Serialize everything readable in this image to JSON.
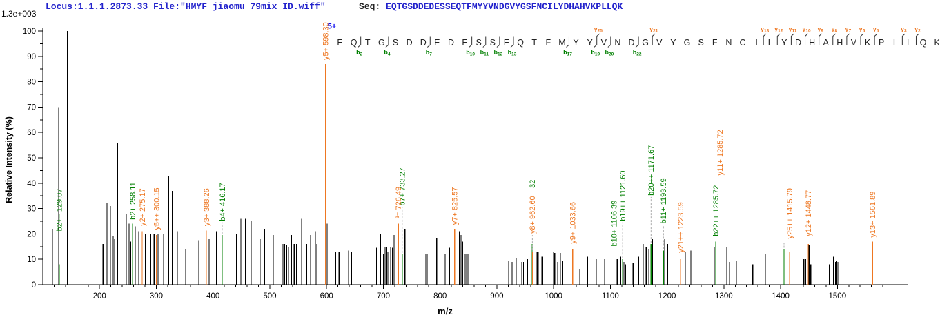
{
  "header": {
    "locus_file": "Locus:1.1.1.2873.33 File:\"HMYF_jiaomu_79mix_ID.wiff\"",
    "seq_prefix": "Seq: ",
    "sequence": "EQTGSDDEDESSEQTFMYYVNDGVYGSFNCILYDHAHVKPLLQK",
    "base_peak_intensity": "1.3e+003",
    "precursor_charge": "5+"
  },
  "colors": {
    "black_peak": "#000000",
    "b_ion_green": "#007f00",
    "y_ion_orange": "#ee7722",
    "header_blue": "#2222cc",
    "precursor_blue": "#0000ee",
    "leader_gray": "#aaaaaa",
    "axis": "#000000"
  },
  "chart_data": {
    "type": "line",
    "subtype": "centroid-ms2-spectrum",
    "title": "",
    "xlabel": "m/z",
    "ylabel": "Relative  Intensity  (%)",
    "xlim": [
      100,
      1620
    ],
    "ylim": [
      0,
      100
    ],
    "x_major_ticks": [
      200,
      300,
      400,
      500,
      600,
      700,
      800,
      900,
      1000,
      1100,
      1200,
      1300,
      1400,
      1500
    ],
    "x_minor_step": 20,
    "y_major_step": 10,
    "y_minor_step": 5,
    "grid": false,
    "legend_position": "none",
    "peaks": [
      [
        117,
        22,
        "k"
      ],
      [
        128,
        70,
        "k"
      ],
      [
        129.07,
        8,
        "g"
      ],
      [
        143,
        100,
        "k"
      ],
      [
        206,
        16,
        "k"
      ],
      [
        213,
        32,
        "k"
      ],
      [
        219,
        31,
        "k"
      ],
      [
        224,
        19,
        "k"
      ],
      [
        226.5,
        18,
        "k"
      ],
      [
        232,
        56,
        "k"
      ],
      [
        238,
        48,
        "k"
      ],
      [
        243,
        29,
        "k"
      ],
      [
        247,
        28,
        "k"
      ],
      [
        252,
        24,
        "k"
      ],
      [
        255,
        17,
        "k"
      ],
      [
        258.11,
        24,
        "g"
      ],
      [
        263,
        23,
        "k"
      ],
      [
        269,
        21,
        "k"
      ],
      [
        275.17,
        21,
        "o"
      ],
      [
        281,
        20,
        "k"
      ],
      [
        290,
        20,
        "k"
      ],
      [
        296,
        20,
        "k"
      ],
      [
        300.15,
        19.5,
        "o"
      ],
      [
        303,
        20,
        "k"
      ],
      [
        313,
        20,
        "k"
      ],
      [
        322,
        43,
        "k"
      ],
      [
        328,
        37,
        "k"
      ],
      [
        337,
        21,
        "k"
      ],
      [
        345,
        21.5,
        "k"
      ],
      [
        352,
        14,
        "k"
      ],
      [
        368,
        42,
        "k"
      ],
      [
        375,
        17.5,
        "k"
      ],
      [
        388.26,
        21.3,
        "o"
      ],
      [
        393,
        18,
        "k"
      ],
      [
        406,
        21,
        "k"
      ],
      [
        416.17,
        19.5,
        "g"
      ],
      [
        423,
        24,
        "k"
      ],
      [
        441,
        20,
        "k"
      ],
      [
        449,
        26,
        "k"
      ],
      [
        457,
        26,
        "k"
      ],
      [
        467,
        25,
        "k"
      ],
      [
        483,
        18,
        "k"
      ],
      [
        486,
        18,
        "k"
      ],
      [
        491,
        22,
        "k"
      ],
      [
        506,
        19.5,
        "k"
      ],
      [
        513,
        22.5,
        "k"
      ],
      [
        523,
        16,
        "k"
      ],
      [
        526,
        16,
        "k"
      ],
      [
        530,
        15.5,
        "k"
      ],
      [
        533,
        15,
        "k"
      ],
      [
        538,
        19.5,
        "k"
      ],
      [
        543,
        16,
        "k"
      ],
      [
        547,
        16,
        "k"
      ],
      [
        556,
        26,
        "k"
      ],
      [
        565,
        16,
        "k"
      ],
      [
        572,
        19.5,
        "k"
      ],
      [
        576,
        17,
        "k"
      ],
      [
        580,
        21,
        "k"
      ],
      [
        583,
        16,
        "k"
      ],
      [
        598.3,
        87,
        "o"
      ],
      [
        601,
        24,
        "k"
      ],
      [
        616,
        13,
        "k"
      ],
      [
        622,
        13,
        "k"
      ],
      [
        639,
        13.5,
        "k"
      ],
      [
        644,
        13,
        "k"
      ],
      [
        655,
        13,
        "k"
      ],
      [
        688,
        14.5,
        "k"
      ],
      [
        695,
        20,
        "k"
      ],
      [
        700,
        12,
        "k"
      ],
      [
        703,
        15,
        "k"
      ],
      [
        706,
        15,
        "k"
      ],
      [
        708,
        13,
        "k"
      ],
      [
        710,
        13,
        "k"
      ],
      [
        713,
        15,
        "k"
      ],
      [
        716,
        14.5,
        "k"
      ],
      [
        719,
        19.5,
        "k"
      ],
      [
        726.49,
        24,
        "o"
      ],
      [
        733.27,
        12,
        "g"
      ],
      [
        738,
        22,
        "k"
      ],
      [
        775,
        12,
        "k"
      ],
      [
        777,
        12,
        "k"
      ],
      [
        794,
        18.5,
        "k"
      ],
      [
        809,
        12,
        "k"
      ],
      [
        817,
        14.5,
        "k"
      ],
      [
        825.57,
        22,
        "o"
      ],
      [
        834,
        21,
        "k"
      ],
      [
        837,
        19.5,
        "k"
      ],
      [
        840,
        17,
        "k"
      ],
      [
        843,
        12,
        "k"
      ],
      [
        845.5,
        12,
        "k"
      ],
      [
        848,
        12,
        "k"
      ],
      [
        850.5,
        12,
        "k"
      ],
      [
        921,
        9.5,
        "k"
      ],
      [
        927,
        9,
        "k"
      ],
      [
        934,
        10.5,
        "k"
      ],
      [
        944,
        9,
        "k"
      ],
      [
        947,
        9,
        "k"
      ],
      [
        954,
        10,
        "k"
      ],
      [
        962.32,
        16,
        "g"
      ],
      [
        962.6,
        13,
        "o"
      ],
      [
        971,
        13,
        "k"
      ],
      [
        973,
        13,
        "k"
      ],
      [
        979,
        11,
        "k"
      ],
      [
        981,
        11,
        "k"
      ],
      [
        1000,
        13,
        "k"
      ],
      [
        1002,
        12.5,
        "k"
      ],
      [
        1007,
        9,
        "k"
      ],
      [
        1012,
        12.5,
        "k"
      ],
      [
        1016,
        9.5,
        "k"
      ],
      [
        1033.66,
        14,
        "o"
      ],
      [
        1046,
        6,
        "k"
      ],
      [
        1060,
        11,
        "k"
      ],
      [
        1075,
        10,
        "k"
      ],
      [
        1090,
        10,
        "k"
      ],
      [
        1106.39,
        13,
        "g"
      ],
      [
        1112,
        10,
        "k"
      ],
      [
        1118,
        11,
        "k"
      ],
      [
        1121.6,
        10,
        "g"
      ],
      [
        1124,
        9,
        "k"
      ],
      [
        1127,
        8,
        "k"
      ],
      [
        1133,
        9,
        "k"
      ],
      [
        1140,
        8.5,
        "k"
      ],
      [
        1150,
        11,
        "k"
      ],
      [
        1158,
        16,
        "k"
      ],
      [
        1163,
        15,
        "k"
      ],
      [
        1168,
        14,
        "k"
      ],
      [
        1171.67,
        16,
        "g"
      ],
      [
        1174,
        18,
        "k"
      ],
      [
        1193.59,
        13.5,
        "g"
      ],
      [
        1196,
        18,
        "k"
      ],
      [
        1201,
        16,
        "k"
      ],
      [
        1223.59,
        10,
        "o"
      ],
      [
        1232,
        13,
        "k"
      ],
      [
        1235,
        12.5,
        "k"
      ],
      [
        1242,
        13.5,
        "k"
      ],
      [
        1283,
        15,
        "k"
      ],
      [
        1285.72,
        17,
        "g"
      ],
      [
        1305,
        15,
        "k"
      ],
      [
        1310,
        9,
        "k"
      ],
      [
        1322,
        9.5,
        "k"
      ],
      [
        1330,
        9.5,
        "k"
      ],
      [
        1351,
        8,
        "k"
      ],
      [
        1373,
        12,
        "k"
      ],
      [
        1406,
        14,
        "g"
      ],
      [
        1415.79,
        13,
        "o"
      ],
      [
        1441,
        10,
        "k"
      ],
      [
        1444,
        10,
        "k"
      ],
      [
        1448.77,
        16,
        "o"
      ],
      [
        1450,
        15.5,
        "k"
      ],
      [
        1453,
        8,
        "k"
      ],
      [
        1486,
        8,
        "k"
      ],
      [
        1493,
        11,
        "k"
      ],
      [
        1497,
        9,
        "k"
      ],
      [
        1499,
        9.5,
        "k"
      ],
      [
        1501,
        9,
        "k"
      ],
      [
        1561.89,
        17,
        "o"
      ]
    ],
    "peak_labels": [
      {
        "mz": 129.07,
        "text": "b2++ 129.07",
        "c": "g",
        "base": 20
      },
      {
        "mz": 258.11,
        "text": "b2+ 258.11",
        "c": "g",
        "base": 24.5
      },
      {
        "mz": 275.17,
        "text": "y2+ 275.17",
        "c": "o",
        "base": 22
      },
      {
        "mz": 300.15,
        "text": "y5++ 300.15",
        "c": "o",
        "base": 20.5
      },
      {
        "mz": 388.26,
        "text": "y3+ 388.26",
        "c": "o",
        "base": 22
      },
      {
        "mz": 416.17,
        "text": "b4+ 416.17",
        "c": "g",
        "base": 24,
        "leader": 19.5
      },
      {
        "mz": 598.3,
        "text": "y5+ 598.30",
        "c": "o",
        "base": 87.5
      },
      {
        "mz": 726.49,
        "text": "³⁺ 726.49",
        "c": "o",
        "base": 25
      },
      {
        "mz": 733.27,
        "text": "b7+ 733.27",
        "c": "g",
        "base": 30,
        "leader": 12
      },
      {
        "mz": 825.57,
        "text": "y7+ 825.57",
        "c": "o",
        "base": 22.5
      },
      {
        "mz": 962.6,
        "text": "y8+ 962.60",
        "c": "o",
        "base": 19,
        "leader": 13
      },
      {
        "mz": 962.6,
        "text": "32",
        "c": "g",
        "base": 37
      },
      {
        "mz": 1033.66,
        "text": "y9+ 1033.66",
        "c": "o",
        "base": 15
      },
      {
        "mz": 1106.39,
        "text": "b10+ 1106.39",
        "c": "g",
        "base": 14
      },
      {
        "mz": 1121.6,
        "text": "b19++ 1121.60",
        "c": "g",
        "base": 24,
        "leader": 10
      },
      {
        "mz": 1171.67,
        "text": "b20++ 1171.67",
        "c": "g",
        "base": 34,
        "leader": 16
      },
      {
        "mz": 1193.59,
        "text": "b11+ 1193.59",
        "c": "g",
        "base": 23,
        "leader": 13.5
      },
      {
        "mz": 1223.59,
        "text": "y21++ 1223.59",
        "c": "o",
        "base": 11.5
      },
      {
        "mz": 1285.72,
        "text": "b22++ 1285.72",
        "c": "g",
        "base": 18
      },
      {
        "mz": 1293,
        "text": "y11+ 1285.72",
        "c": "o",
        "base": 42
      },
      {
        "mz": 1406,
        "text": "",
        "c": "g",
        "base": 16,
        "leader": 14
      },
      {
        "mz": 1415.79,
        "text": "y25++ 1415.79",
        "c": "o",
        "base": 17
      },
      {
        "mz": 1448.77,
        "text": "y12+ 1448.77",
        "c": "o",
        "base": 18
      },
      {
        "mz": 1561.89,
        "text": "y13+ 1561.89",
        "c": "o",
        "base": 17.5
      }
    ],
    "annotations": [
      {
        "mz": 598.3,
        "pct": 101,
        "text": "5+",
        "c": "b",
        "dx": 3
      }
    ],
    "sequence_annotation": {
      "residues": "EQTGSDDEDESSEQTFMYYVNDGVYGSFNCILYDHAHVKPLLQK",
      "b_ions": [
        2,
        4,
        7,
        10,
        11,
        12,
        13,
        17,
        19,
        20,
        22
      ],
      "y_ions": [
        25,
        21,
        13,
        12,
        11,
        10,
        9,
        8,
        7,
        6,
        5,
        3,
        2
      ]
    }
  }
}
